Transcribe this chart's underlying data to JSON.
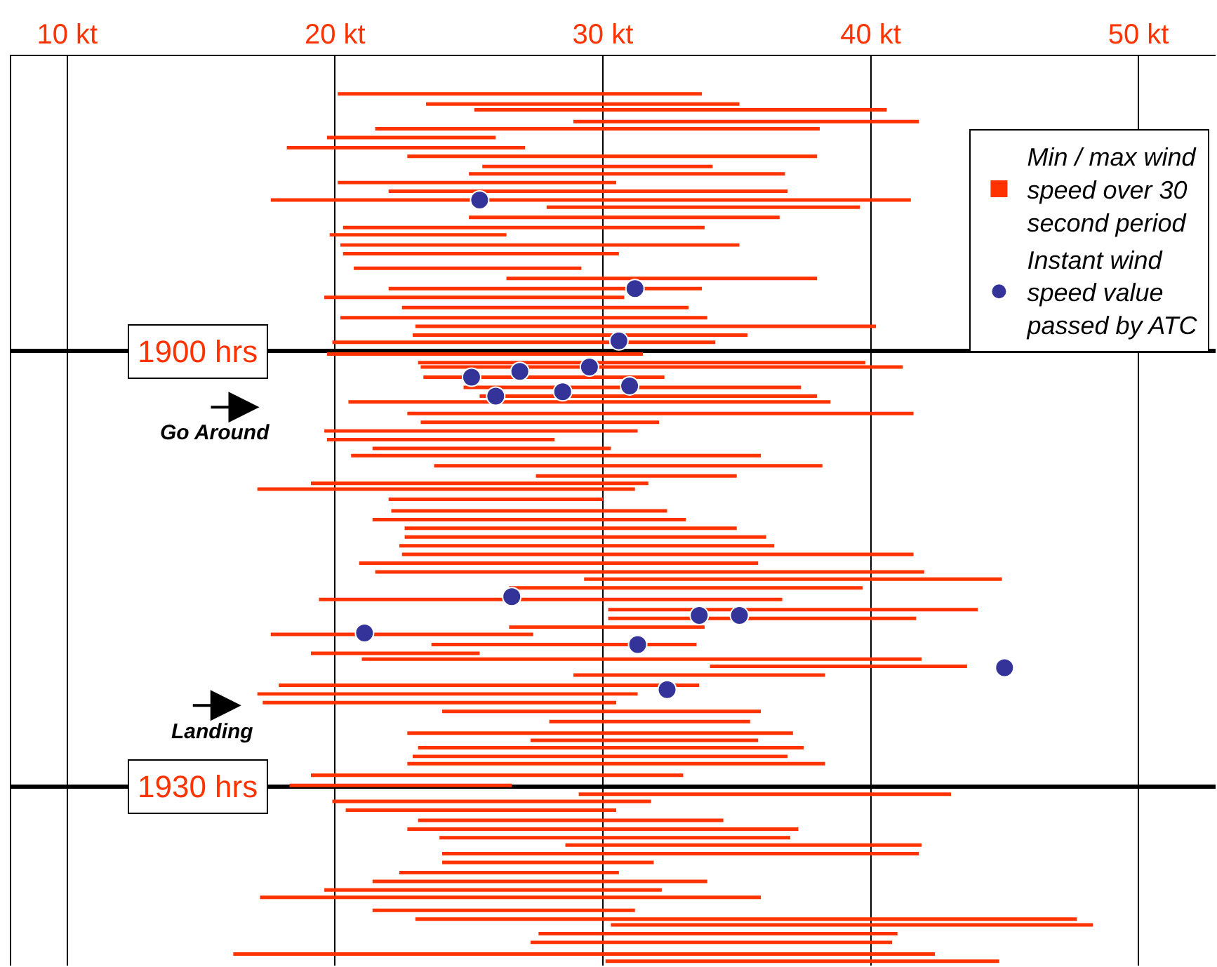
{
  "chart_data": {
    "type": "bar",
    "orientation": "horizontal",
    "x": [
      1882.3,
      1883.0,
      1883.4,
      1884.2,
      1884.7,
      1885.3,
      1886.0,
      1886.6,
      1887.3,
      1887.8,
      1888.4,
      1889.0,
      1889.6,
      1890.1,
      1890.8,
      1891.5,
      1892.0,
      1892.7,
      1893.3,
      1894.3,
      1895.0,
      1895.7,
      1896.3,
      1897.0,
      1897.7,
      1898.3,
      1898.9,
      1899.4,
      1900.2,
      1900.8,
      1901.1,
      1901.8,
      1902.5,
      1903.1,
      1903.5,
      1904.3,
      1904.9,
      1905.5,
      1906.1,
      1906.7,
      1907.2,
      1907.9,
      1908.6,
      1909.1,
      1909.5,
      1910.2,
      1911.0,
      1911.6,
      1912.2,
      1912.8,
      1913.4,
      1914.0,
      1914.6,
      1915.2,
      1915.7,
      1916.3,
      1917.1,
      1917.8,
      1918.4,
      1919.0,
      1919.5,
      1920.2,
      1920.8,
      1921.2,
      1921.7,
      1922.3,
      1923.0,
      1923.6,
      1924.2,
      1924.8,
      1925.5,
      1926.3,
      1926.8,
      1927.3,
      1927.9,
      1928.4,
      1929.2,
      1929.9,
      1930.5,
      1931.0,
      1931.6,
      1932.3,
      1932.9,
      1933.5,
      1934.0,
      1934.6,
      1935.2,
      1935.9,
      1936.5,
      1937.1,
      1937.6,
      1938.5,
      1939.1,
      1939.5,
      1940.1,
      1940.7,
      1941.5,
      1942.0
    ],
    "series": [
      {
        "name": "Min / max wind speed over 30 second period",
        "color": "#ff3300",
        "base": [
          20.1,
          23.4,
          25.2,
          28.9,
          21.5,
          19.7,
          18.2,
          22.7,
          25.5,
          25.0,
          20.1,
          22.0,
          17.6,
          27.9,
          25.0,
          20.3,
          19.8,
          20.2,
          20.3,
          20.7,
          26.4,
          22.0,
          19.6,
          22.5,
          20.2,
          23.0,
          22.9,
          19.9,
          19.7,
          23.1,
          23.2,
          23.3,
          24.8,
          25.4,
          20.5,
          22.7,
          23.2,
          19.6,
          19.7,
          21.4,
          20.6,
          23.7,
          27.5,
          19.1,
          17.1,
          22.0,
          22.1,
          21.4,
          22.6,
          22.6,
          22.4,
          22.5,
          20.9,
          21.5,
          29.3,
          26.5,
          19.4,
          30.2,
          30.2,
          26.5,
          17.6,
          23.6,
          19.1,
          21.0,
          34.0,
          28.9,
          17.9,
          17.1,
          17.3,
          24.0,
          28.0,
          22.7,
          27.3,
          23.1,
          22.9,
          22.7,
          19.1,
          18.3,
          29.1,
          19.9,
          20.4,
          23.1,
          22.7,
          23.9,
          28.6,
          24.0,
          24.0,
          22.4,
          21.4,
          19.6,
          17.2,
          21.4,
          23.0,
          30.3,
          27.6,
          27.3,
          16.2,
          30.1
        ],
        "values": [
          13.6,
          11.7,
          15.4,
          12.9,
          16.6,
          6.3,
          8.9,
          15.3,
          8.6,
          11.8,
          10.4,
          14.9,
          23.9,
          11.7,
          11.6,
          13.5,
          6.6,
          14.9,
          10.3,
          8.5,
          11.6,
          11.7,
          11.2,
          10.7,
          13.7,
          17.2,
          12.5,
          14.3,
          11.8,
          16.7,
          18.0,
          9.0,
          12.6,
          12.6,
          18.0,
          18.9,
          8.9,
          11.7,
          8.5,
          8.9,
          15.3,
          14.5,
          7.5,
          12.6,
          14.1,
          8.0,
          10.3,
          11.7,
          12.4,
          13.5,
          14.0,
          19.1,
          14.9,
          20.5,
          15.6,
          13.2,
          17.3,
          13.8,
          11.5,
          7.3,
          9.8,
          9.9,
          6.3,
          20.9,
          9.6,
          9.4,
          15.7,
          14.2,
          13.2,
          11.9,
          7.5,
          14.4,
          8.5,
          14.4,
          14.0,
          15.6,
          13.9,
          8.3,
          13.9,
          11.9,
          10.1,
          11.4,
          14.6,
          13.1,
          13.3,
          17.8,
          7.9,
          8.2,
          12.5,
          12.6,
          18.7,
          9.8,
          24.7,
          18.0,
          13.4,
          13.5,
          26.2,
          14.7
        ]
      },
      {
        "name": "Instant wind speed value passed by ATC",
        "type": "scatter",
        "marker": "circle",
        "color": "#333399",
        "x": [
          1889.6,
          1895.7,
          1899.3,
          1901.1,
          1901.4,
          1901.8,
          1902.4,
          1902.8,
          1903.1,
          1916.9,
          1918.2,
          1918.2,
          1919.4,
          1920.2,
          1921.8,
          1923.3
        ],
        "values": [
          25.4,
          31.2,
          30.6,
          29.5,
          26.9,
          25.1,
          31.0,
          28.5,
          26.0,
          26.6,
          33.6,
          35.1,
          21.1,
          31.3,
          45.0,
          32.4
        ]
      }
    ],
    "xlim": [
      7.91,
      52.88
    ],
    "xticks": [
      {
        "value": 10,
        "label": "10 kt"
      },
      {
        "value": 20,
        "label": "20 kt"
      },
      {
        "value": 30,
        "label": "30 kt"
      },
      {
        "value": 40,
        "label": "40 kt"
      },
      {
        "value": 50,
        "label": "50 kt"
      }
    ],
    "ylim": [
      1942.3,
      1879.7
    ],
    "yticks": [
      {
        "value": 1900,
        "label": "1900 hrs"
      },
      {
        "value": 1930,
        "label": "1930 hrs"
      }
    ],
    "grid": true,
    "legend": "top right",
    "annotations": [
      "Go Around",
      "Landing"
    ]
  }
}
